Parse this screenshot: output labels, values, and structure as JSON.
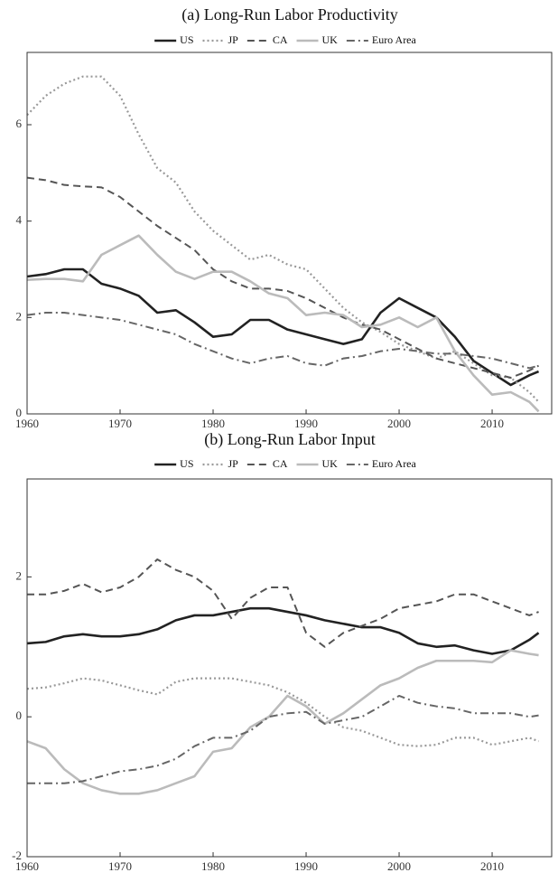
{
  "chart_data": [
    {
      "type": "line",
      "title": "(a) Long-Run Labor Productivity",
      "x": [
        1960,
        1962,
        1964,
        1966,
        1968,
        1970,
        1972,
        1974,
        1976,
        1978,
        1980,
        1982,
        1984,
        1986,
        1988,
        1990,
        1992,
        1994,
        1996,
        1998,
        2000,
        2002,
        2004,
        2006,
        2008,
        2010,
        2012,
        2014,
        2015
      ],
      "xlim": [
        1960,
        2016.5
      ],
      "xticks": [
        1960,
        1970,
        1980,
        1990,
        2000,
        2010
      ],
      "ylim": [
        0,
        7.5
      ],
      "yticks": [
        0,
        2,
        4,
        6
      ],
      "legend": "top",
      "series": [
        {
          "name": "US",
          "color": "#222222",
          "values": [
            2.85,
            2.9,
            3.0,
            3.0,
            2.7,
            2.6,
            2.45,
            2.1,
            2.15,
            1.9,
            1.6,
            1.65,
            1.95,
            1.95,
            1.75,
            1.65,
            1.55,
            1.45,
            1.55,
            2.1,
            2.4,
            2.2,
            2.0,
            1.6,
            1.1,
            0.85,
            0.6,
            0.8,
            0.88
          ]
        },
        {
          "name": "JP",
          "color": "#999999",
          "values": [
            6.2,
            6.6,
            6.85,
            7.0,
            7.0,
            6.6,
            5.8,
            5.1,
            4.8,
            4.2,
            3.8,
            3.5,
            3.2,
            3.3,
            3.1,
            3.0,
            2.6,
            2.2,
            1.9,
            1.7,
            1.45,
            1.3,
            1.15,
            1.3,
            1.05,
            0.8,
            0.75,
            0.45,
            0.25
          ]
        },
        {
          "name": "CA",
          "color": "#555555",
          "values": [
            4.9,
            4.85,
            4.75,
            4.72,
            4.7,
            4.5,
            4.2,
            3.9,
            3.65,
            3.4,
            3.0,
            2.75,
            2.6,
            2.6,
            2.55,
            2.4,
            2.2,
            2.0,
            1.85,
            1.75,
            1.55,
            1.35,
            1.15,
            1.05,
            0.95,
            0.85,
            0.75,
            0.9,
            1.0
          ]
        },
        {
          "name": "UK",
          "color": "#bbbbbb",
          "values": [
            2.78,
            2.8,
            2.8,
            2.75,
            3.3,
            3.5,
            3.7,
            3.3,
            2.95,
            2.8,
            2.95,
            2.95,
            2.75,
            2.5,
            2.4,
            2.05,
            2.1,
            2.05,
            1.8,
            1.85,
            2.0,
            1.8,
            2.0,
            1.3,
            0.8,
            0.4,
            0.45,
            0.25,
            0.05
          ]
        },
        {
          "name": "Euro Area",
          "color": "#666666",
          "values": [
            2.05,
            2.1,
            2.1,
            2.05,
            2.0,
            1.95,
            1.85,
            1.75,
            1.65,
            1.45,
            1.3,
            1.15,
            1.05,
            1.15,
            1.2,
            1.05,
            1.0,
            1.15,
            1.2,
            1.3,
            1.35,
            1.3,
            1.25,
            1.25,
            1.2,
            1.15,
            1.05,
            0.95,
            1.0
          ]
        }
      ]
    },
    {
      "type": "line",
      "title": "(b) Long-Run Labor Input",
      "x": [
        1960,
        1962,
        1964,
        1966,
        1968,
        1970,
        1972,
        1974,
        1976,
        1978,
        1980,
        1982,
        1984,
        1986,
        1988,
        1990,
        1992,
        1994,
        1996,
        1998,
        2000,
        2002,
        2004,
        2006,
        2008,
        2010,
        2012,
        2014,
        2015
      ],
      "xlim": [
        1960,
        2016.5
      ],
      "xticks": [
        1960,
        1970,
        1980,
        1990,
        2000,
        2010
      ],
      "ylim": [
        -2,
        3.4
      ],
      "yticks": [
        -2,
        0,
        2
      ],
      "legend": "top",
      "series": [
        {
          "name": "US",
          "color": "#222222",
          "values": [
            1.05,
            1.07,
            1.15,
            1.18,
            1.15,
            1.15,
            1.18,
            1.25,
            1.38,
            1.45,
            1.45,
            1.5,
            1.55,
            1.55,
            1.5,
            1.45,
            1.38,
            1.33,
            1.28,
            1.28,
            1.2,
            1.05,
            1.0,
            1.02,
            0.95,
            0.9,
            0.95,
            1.1,
            1.2
          ]
        },
        {
          "name": "JP",
          "color": "#999999",
          "values": [
            0.4,
            0.42,
            0.48,
            0.55,
            0.52,
            0.45,
            0.38,
            0.32,
            0.5,
            0.55,
            0.55,
            0.55,
            0.5,
            0.45,
            0.35,
            0.2,
            0.0,
            -0.15,
            -0.2,
            -0.3,
            -0.4,
            -0.42,
            -0.4,
            -0.3,
            -0.3,
            -0.4,
            -0.35,
            -0.3,
            -0.35
          ]
        },
        {
          "name": "CA",
          "color": "#555555",
          "values": [
            1.75,
            1.75,
            1.8,
            1.9,
            1.78,
            1.85,
            2.0,
            2.25,
            2.1,
            2.0,
            1.8,
            1.4,
            1.7,
            1.85,
            1.85,
            1.2,
            1.0,
            1.2,
            1.3,
            1.4,
            1.55,
            1.6,
            1.65,
            1.75,
            1.75,
            1.65,
            1.55,
            1.45,
            1.5
          ]
        },
        {
          "name": "UK",
          "color": "#bbbbbb",
          "values": [
            -0.35,
            -0.45,
            -0.75,
            -0.95,
            -1.05,
            -1.1,
            -1.1,
            -1.05,
            -0.95,
            -0.85,
            -0.5,
            -0.45,
            -0.15,
            0.0,
            0.3,
            0.15,
            -0.1,
            0.05,
            0.25,
            0.45,
            0.55,
            0.7,
            0.8,
            0.8,
            0.8,
            0.78,
            0.95,
            0.9,
            0.88
          ]
        },
        {
          "name": "Euro Area",
          "color": "#666666",
          "values": [
            -0.95,
            -0.95,
            -0.95,
            -0.92,
            -0.85,
            -0.78,
            -0.75,
            -0.7,
            -0.6,
            -0.42,
            -0.3,
            -0.3,
            -0.2,
            0.0,
            0.05,
            0.07,
            -0.1,
            -0.05,
            0.0,
            0.15,
            0.3,
            0.2,
            0.15,
            0.12,
            0.05,
            0.05,
            0.05,
            0.0,
            0.02
          ]
        }
      ]
    }
  ]
}
